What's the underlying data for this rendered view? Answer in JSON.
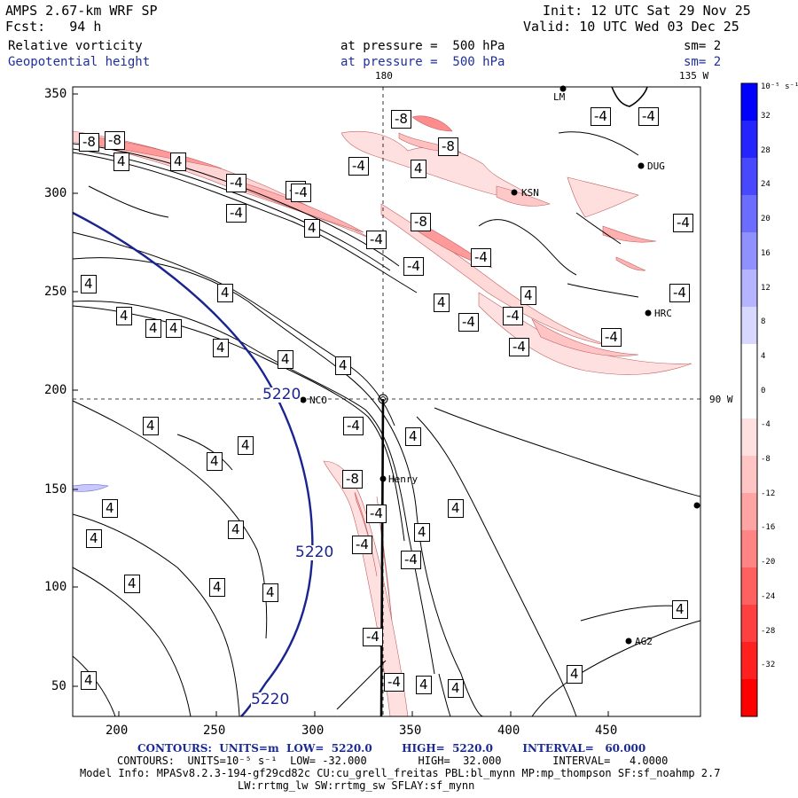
{
  "header": {
    "model": "AMPS 2.67-km WRF SP",
    "forecast": "Fcst:   94 h",
    "init": "Init: 12 UTC Sat 29 Nov 25",
    "valid": "Valid: 10 UTC Wed 03 Dec 25",
    "field1_name": "Relative vorticity",
    "field1_level": "at pressure =  500 hPa",
    "field1_sm": "sm= 2",
    "field2_name": "Geopotential height",
    "field2_level": "at pressure =  500 hPa",
    "field2_sm": "sm= 2"
  },
  "map": {
    "top_labels": [
      "180",
      "135 W"
    ],
    "right_label": "90 W",
    "x_ticks": [
      "200",
      "250",
      "300",
      "350",
      "400",
      "450"
    ],
    "y_ticks": [
      "350",
      "300",
      "250",
      "200",
      "150",
      "100",
      "50"
    ],
    "stations": [
      "NCO",
      "Henry",
      "DUG",
      "KSN",
      "HRC",
      "AG2",
      "LM"
    ],
    "height_contour_label": "5220",
    "vorticity_labels": [
      "-8",
      "-4",
      "4"
    ]
  },
  "colorbar": {
    "unit": "10⁻⁵ s⁻¹",
    "ticks": [
      "32",
      "28",
      "24",
      "20",
      "16",
      "12",
      "8",
      "4",
      "0",
      "-4",
      "-8",
      "-12",
      "-16",
      "-20",
      "-24",
      "-28",
      "-32"
    ],
    "colors": [
      "#0000ff",
      "#2424ff",
      "#4848ff",
      "#6c6cff",
      "#9090ff",
      "#b4b4ff",
      "#d8d8ff",
      "#ffffff",
      "#ffffff",
      "#ffe0e0",
      "#ffc4c4",
      "#ffa4a4",
      "#ff8484",
      "#ff6060",
      "#ff4040",
      "#ff2020",
      "#ff0000"
    ]
  },
  "footer": {
    "line1_contours": "CONTOURS:  UNITS=m  LOW=  5220.0        HIGH=  5220.0        INTERVAL=   60.000",
    "line2_contours": "CONTOURS:  UNITS=10⁻⁵ s⁻¹  LOW= -32.000        HIGH=  32.000        INTERVAL=   4.0000",
    "model_info": "Model Info: MPASv8.2.3-194-gf29cd82c CU:cu_grell_freitas PBL:bl_mynn MP:mp_thompson SF:sf_noahmp 2.7",
    "model_info2": "LW:rrtmg_lw SW:rrtmg_sw SFLAY:sf_mynn"
  }
}
